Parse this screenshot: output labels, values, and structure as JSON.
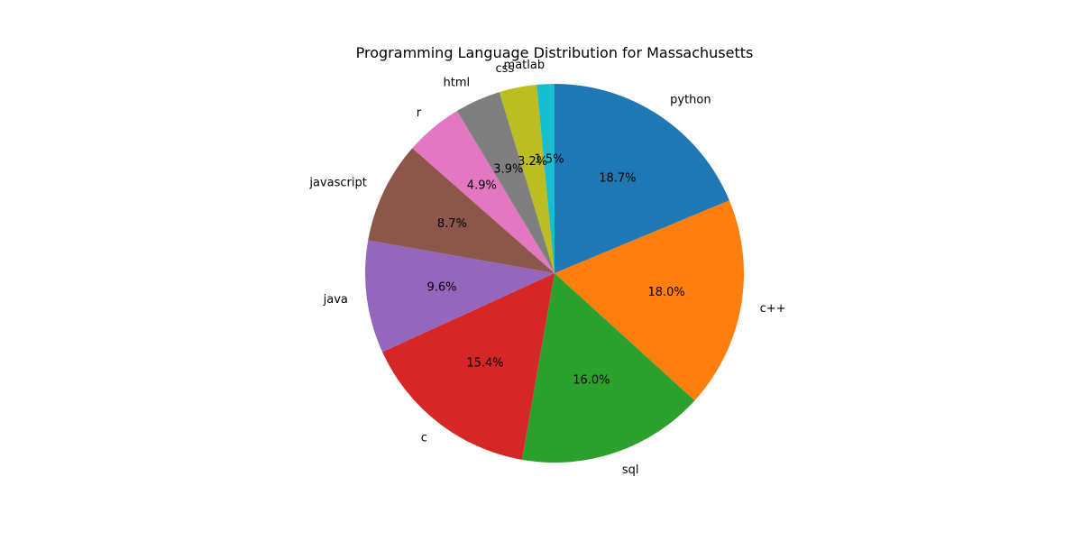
{
  "chart_data": {
    "type": "pie",
    "title": "Programming Language Distribution for Massachusetts",
    "start_angle_deg": 90,
    "direction": "clockwise",
    "slices": [
      {
        "label": "python",
        "value": 18.7,
        "pct_label": "18.7%",
        "color": "#1f77b4"
      },
      {
        "label": "c++",
        "value": 18.0,
        "pct_label": "18.0%",
        "color": "#ff7f0e"
      },
      {
        "label": "sql",
        "value": 16.0,
        "pct_label": "16.0%",
        "color": "#2ca02c"
      },
      {
        "label": "c",
        "value": 15.4,
        "pct_label": "15.4%",
        "color": "#d62728"
      },
      {
        "label": "java",
        "value": 9.6,
        "pct_label": "9.6%",
        "color": "#9467bd"
      },
      {
        "label": "javascript",
        "value": 8.7,
        "pct_label": "8.7%",
        "color": "#8c564b"
      },
      {
        "label": "r",
        "value": 4.9,
        "pct_label": "4.9%",
        "color": "#e377c2"
      },
      {
        "label": "html",
        "value": 3.9,
        "pct_label": "3.9%",
        "color": "#7f7f7f"
      },
      {
        "label": "css",
        "value": 3.2,
        "pct_label": "3.2%",
        "color": "#bcbd22"
      },
      {
        "label": "matlab",
        "value": 1.5,
        "pct_label": "1.5%",
        "color": "#17becf"
      }
    ]
  }
}
